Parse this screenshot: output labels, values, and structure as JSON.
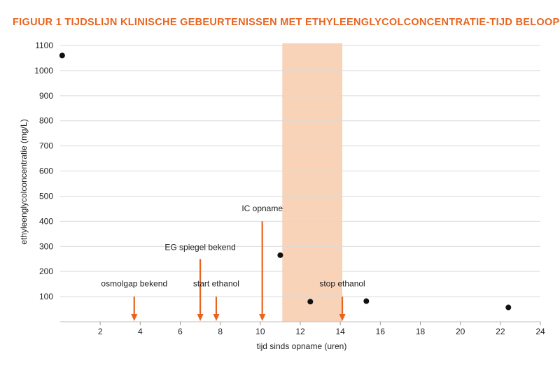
{
  "figure": {
    "title": "FIGUUR 1  TIJDSLIJN KLINISCHE GEBEURTENISSEN MET ETHYLEENGLYCOLCONCENTRATIE-TIJD BELOOP"
  },
  "colors": {
    "title": "#e8641e",
    "arrow": "#e8641e",
    "shade": "#f9d3b8",
    "grid": "#d9d9d9",
    "point": "#111111"
  },
  "chart_data": {
    "type": "scatter",
    "xlabel": "tijd sinds opname (uren)",
    "ylabel": "ethyleenglycolconcentratie (mg/L)",
    "xlim": [
      0,
      24
    ],
    "ylim": [
      0,
      1100
    ],
    "xticks": [
      2,
      4,
      6,
      8,
      10,
      12,
      14,
      16,
      18,
      20,
      22,
      24
    ],
    "yticks": [
      100,
      200,
      300,
      400,
      500,
      600,
      700,
      800,
      900,
      1000,
      1100
    ],
    "grid": "horizontal",
    "points": [
      {
        "x": 0.1,
        "y": 1060
      },
      {
        "x": 11.0,
        "y": 265
      },
      {
        "x": 12.5,
        "y": 80
      },
      {
        "x": 15.3,
        "y": 82
      },
      {
        "x": 22.4,
        "y": 57
      }
    ],
    "shaded_interval": {
      "x_start": 11.1,
      "x_end": 14.1
    },
    "annotations": [
      {
        "label": "osmolgap bekend",
        "x": 3.7,
        "y_top": 100,
        "label_y": 140
      },
      {
        "label": "EG spiegel bekend",
        "x": 7.0,
        "y_top": 250,
        "label_y": 285
      },
      {
        "label": "start ethanol",
        "x": 7.8,
        "y_top": 100,
        "label_y": 140
      },
      {
        "label": "IC opname",
        "x": 10.1,
        "y_top": 400,
        "label_y": 440
      },
      {
        "label": "stop ethanol",
        "x": 14.1,
        "y_top": 100,
        "label_y": 140
      }
    ]
  }
}
